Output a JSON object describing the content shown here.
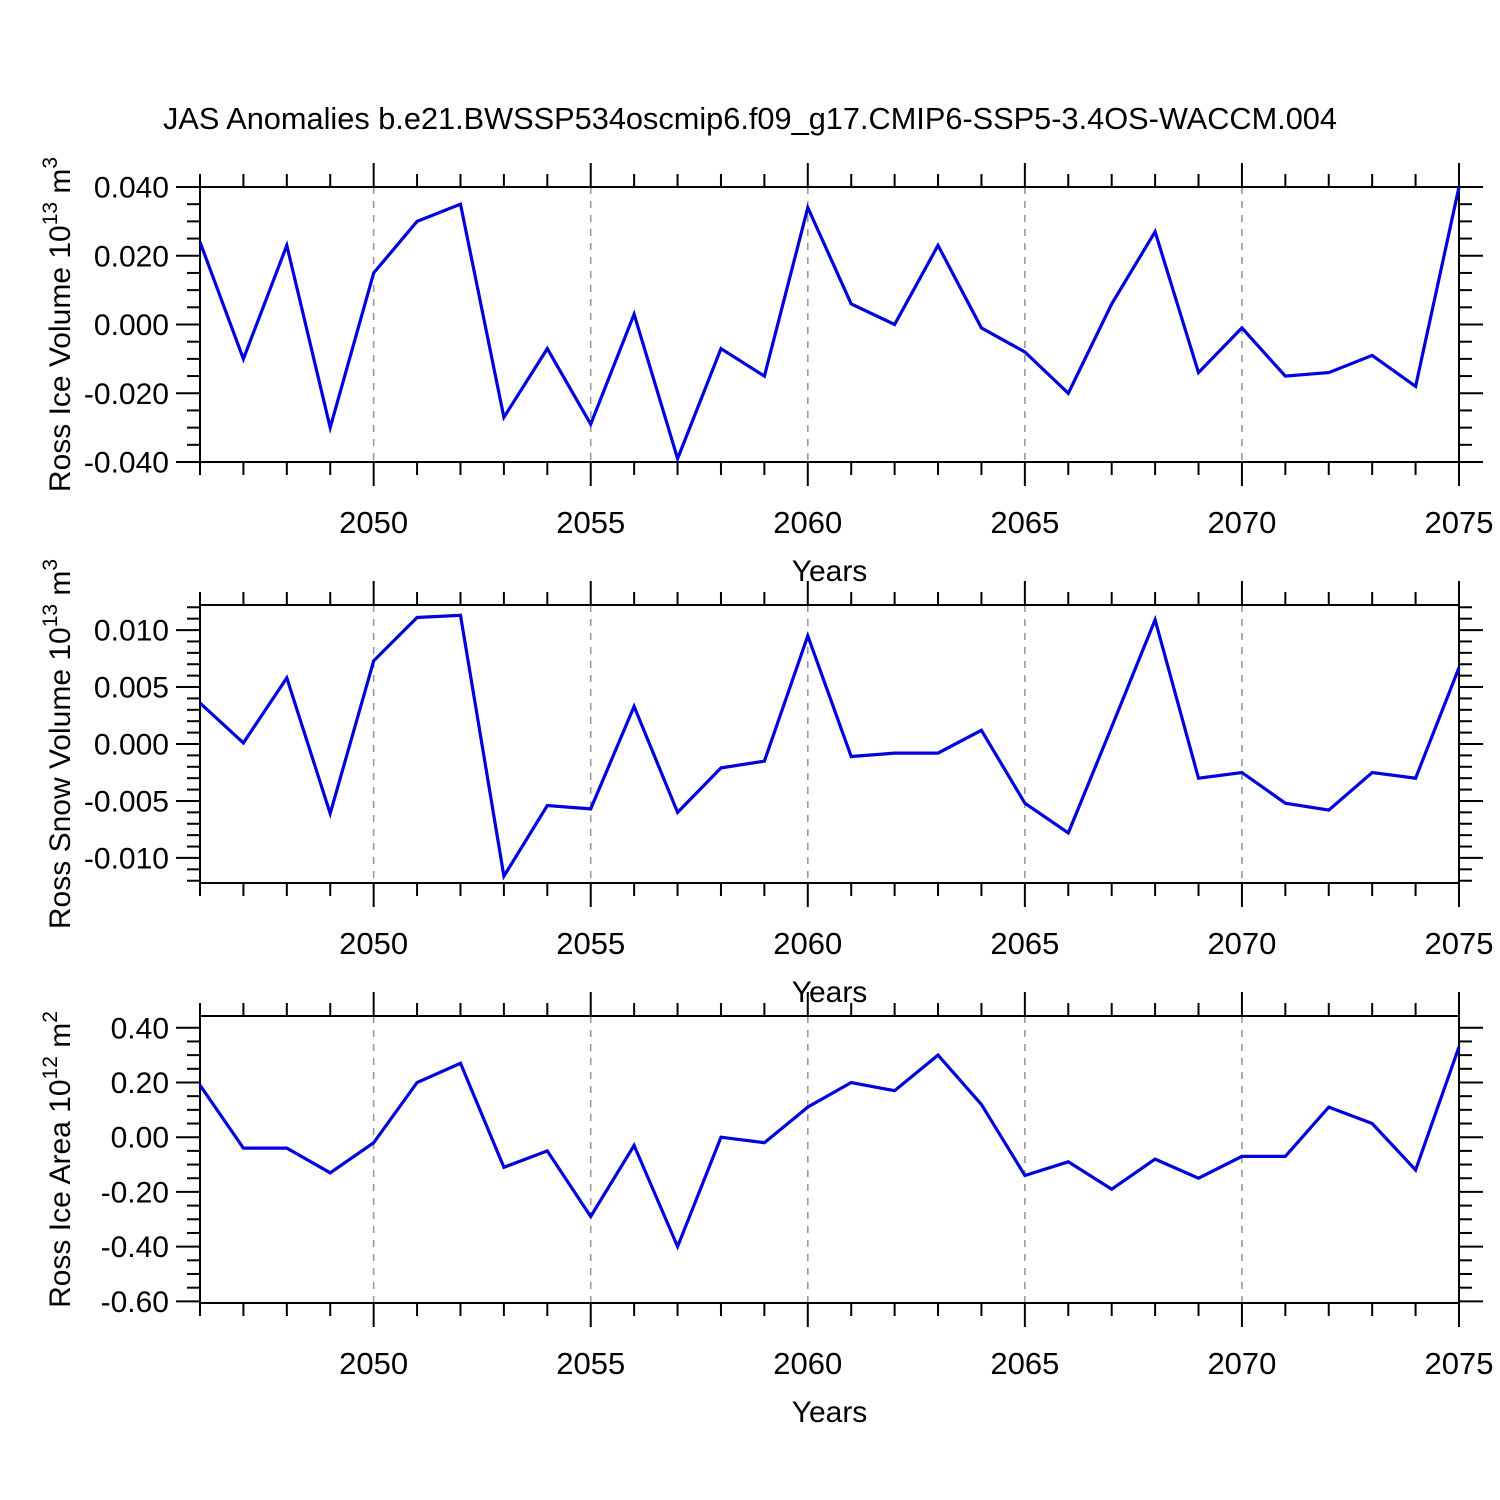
{
  "title": "JAS Anomalies b.e21.BWSSP534oscmip6.f09_g17.CMIP6-SSP5-3.4OS-WACCM.004",
  "figure": {
    "background": "#ffffff",
    "line_color": "#0000dd",
    "grid_color": "#999999",
    "frame_color": "#000000",
    "text_color": "#000000"
  },
  "xaxis": {
    "label": "Years",
    "xlim": [
      2046,
      2075
    ],
    "major_ticks": [
      2050,
      2055,
      2060,
      2065,
      2070,
      2075
    ],
    "tick_labels": [
      "2050",
      "2055",
      "2060",
      "2065",
      "2070",
      "2075"
    ],
    "minor_step": 1,
    "grid_years": [
      2050,
      2055,
      2060,
      2065,
      2070
    ]
  },
  "years": [
    2046,
    2047,
    2048,
    2049,
    2050,
    2051,
    2052,
    2053,
    2054,
    2055,
    2056,
    2057,
    2058,
    2059,
    2060,
    2061,
    2062,
    2063,
    2064,
    2065,
    2066,
    2067,
    2068,
    2069,
    2070,
    2071,
    2072,
    2073,
    2074,
    2075
  ],
  "chart_data": [
    {
      "type": "line",
      "name": "ross-ice-volume",
      "ylabel": "Ross Ice Volume 10^13 m^3",
      "ylabel_segments": [
        {
          "t": "Ross Ice Volume 10"
        },
        {
          "t": "13",
          "sup": true
        },
        {
          "t": " m"
        },
        {
          "t": "3",
          "sup": true
        }
      ],
      "xlabel": "Years",
      "ylim": [
        -0.04,
        0.04
      ],
      "ytick_values": [
        0.04,
        0.02,
        0,
        -0.02,
        -0.04
      ],
      "ytick_labels": [
        "0.040",
        "0.020",
        "0.000",
        "-0.020",
        "-0.040"
      ],
      "yminor_step": 0.005,
      "values": [
        0.024,
        -0.01,
        0.023,
        -0.03,
        0.015,
        0.03,
        0.035,
        -0.027,
        -0.007,
        -0.029,
        0.003,
        -0.039,
        -0.007,
        -0.015,
        0.034,
        0.006,
        0.0,
        0.023,
        -0.001,
        -0.008,
        -0.02,
        0.006,
        0.027,
        -0.014,
        -0.001,
        -0.015,
        -0.014,
        -0.009,
        -0.018,
        0.04
      ]
    },
    {
      "type": "line",
      "name": "ross-snow-volume",
      "ylabel": "Ross Snow Volume 10^13 m^3",
      "ylabel_segments": [
        {
          "t": "Ross Snow Volume 10"
        },
        {
          "t": "13",
          "sup": true
        },
        {
          "t": " m"
        },
        {
          "t": "3",
          "sup": true
        }
      ],
      "xlabel": "Years",
      "ylim": [
        -0.0122,
        0.0122
      ],
      "ytick_values": [
        0.01,
        0.005,
        0,
        -0.005,
        -0.01
      ],
      "ytick_labels": [
        "0.010",
        "0.005",
        "0.000",
        "-0.005",
        "-0.010"
      ],
      "yminor_step": 0.001,
      "values": [
        0.0036,
        0.0001,
        0.0058,
        -0.0061,
        0.0073,
        0.0111,
        0.0113,
        -0.0116,
        -0.0054,
        -0.0057,
        0.0033,
        -0.006,
        -0.0021,
        -0.0015,
        0.0095,
        -0.0011,
        -0.0008,
        -0.0008,
        0.0012,
        -0.0052,
        -0.0078,
        0.0015,
        0.0109,
        -0.003,
        -0.0025,
        -0.0052,
        -0.0058,
        -0.0025,
        -0.003,
        0.0067
      ]
    },
    {
      "type": "line",
      "name": "ross-ice-area",
      "ylabel": "Ross Ice Area 10^12 m^2",
      "ylabel_segments": [
        {
          "t": "Ross Ice Area 10"
        },
        {
          "t": "12",
          "sup": true
        },
        {
          "t": " m"
        },
        {
          "t": "2",
          "sup": true
        }
      ],
      "xlabel": "Years",
      "ylim": [
        -0.606,
        0.443
      ],
      "ytick_values": [
        0.4,
        0.2,
        0,
        -0.2,
        -0.4,
        -0.6
      ],
      "ytick_labels": [
        "0.40",
        "0.20",
        "0.00",
        "-0.20",
        "-0.40",
        "-0.60"
      ],
      "yminor_step": 0.05,
      "values": [
        0.19,
        -0.04,
        -0.04,
        -0.13,
        -0.02,
        0.2,
        0.27,
        -0.11,
        -0.05,
        -0.29,
        -0.03,
        -0.4,
        0.0,
        -0.02,
        0.11,
        0.2,
        0.17,
        0.3,
        0.12,
        -0.14,
        -0.09,
        -0.19,
        -0.08,
        -0.15,
        -0.07,
        -0.07,
        0.11,
        0.05,
        -0.12,
        0.33
      ]
    }
  ]
}
